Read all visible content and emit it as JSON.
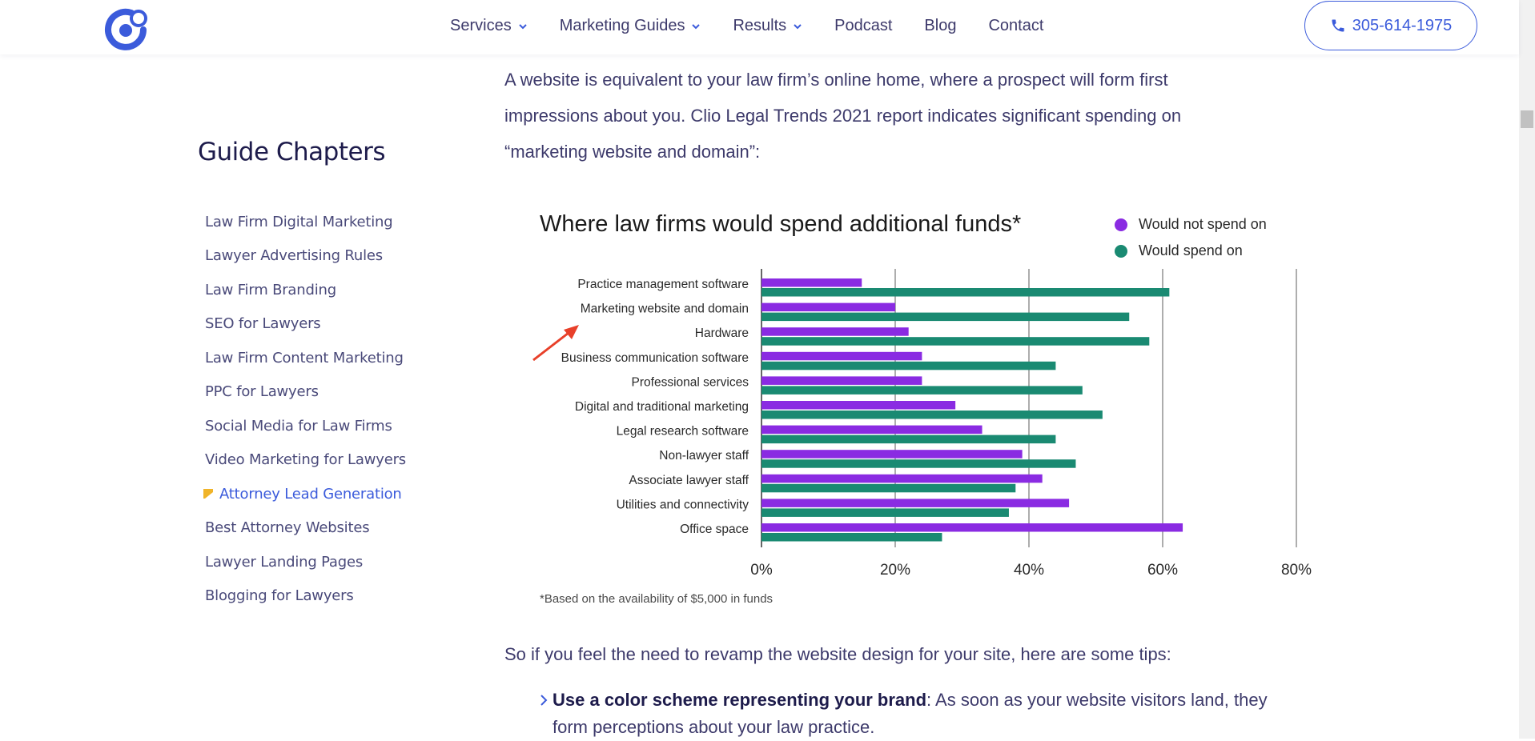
{
  "header": {
    "logo_name": "brand-logo",
    "nav": [
      {
        "label": "Services",
        "has_dropdown": true
      },
      {
        "label": "Marketing Guides",
        "has_dropdown": true
      },
      {
        "label": "Results",
        "has_dropdown": true
      },
      {
        "label": "Podcast",
        "has_dropdown": false
      },
      {
        "label": "Blog",
        "has_dropdown": false
      },
      {
        "label": "Contact",
        "has_dropdown": false
      }
    ],
    "phone": "305-614-1975",
    "accent": "#3b5bdb"
  },
  "sidebar": {
    "title": "Guide Chapters",
    "items": [
      {
        "label": "Law Firm Digital Marketing"
      },
      {
        "label": "Lawyer Advertising Rules"
      },
      {
        "label": "Law Firm Branding"
      },
      {
        "label": "SEO for Lawyers"
      },
      {
        "label": "Law Firm Content Marketing"
      },
      {
        "label": "PPC for Lawyers"
      },
      {
        "label": "Social Media for Law Firms"
      },
      {
        "label": "Video Marketing for Lawyers"
      },
      {
        "label": "Attorney Lead Generation",
        "active": true
      },
      {
        "label": "Best Attorney Websites"
      },
      {
        "label": "Lawyer Landing Pages"
      },
      {
        "label": "Blogging for Lawyers"
      }
    ],
    "active_marker_color": "#f0b429"
  },
  "content": {
    "intro_lines": [
      "A website is equivalent to your law firm’s online home, where a prospect will form first",
      "impressions about you. Clio Legal Trends 2021 report indicates significant spending on",
      "“marketing website and domain”:"
    ],
    "tips_intro": "So if you feel the need to revamp the website design for your site, here are some tips:",
    "bullet_bold": "Use a color scheme representing your brand",
    "bullet_rest": ": As soon as your website visitors land, they",
    "bullet_line2": "form perceptions about your law practice."
  },
  "chart_data": {
    "type": "bar",
    "orientation": "horizontal",
    "title": "Where law firms would spend additional funds*",
    "footnote": "*Based on the availability of $5,000 in funds",
    "categories": [
      "Practice management software",
      "Marketing website and domain",
      "Hardware",
      "Business communication software",
      "Professional services",
      "Digital and traditional marketing",
      "Legal research software",
      "Non-lawyer staff",
      "Associate lawyer staff",
      "Utilities and connectivity",
      "Office space"
    ],
    "series": [
      {
        "name": "Would not spend on",
        "color": "#8a2be2",
        "values": [
          15,
          20,
          22,
          24,
          24,
          29,
          33,
          39,
          42,
          46,
          63
        ]
      },
      {
        "name": "Would spend on",
        "color": "#1a8a72",
        "values": [
          61,
          55,
          58,
          44,
          48,
          51,
          44,
          47,
          38,
          37,
          27
        ]
      }
    ],
    "x_ticks": [
      "0%",
      "20%",
      "40%",
      "60%",
      "80%"
    ],
    "xlim": [
      0,
      80
    ],
    "grid": true,
    "legend_position": "top-right",
    "annotation": "red arrow pointing to Marketing website and domain"
  }
}
